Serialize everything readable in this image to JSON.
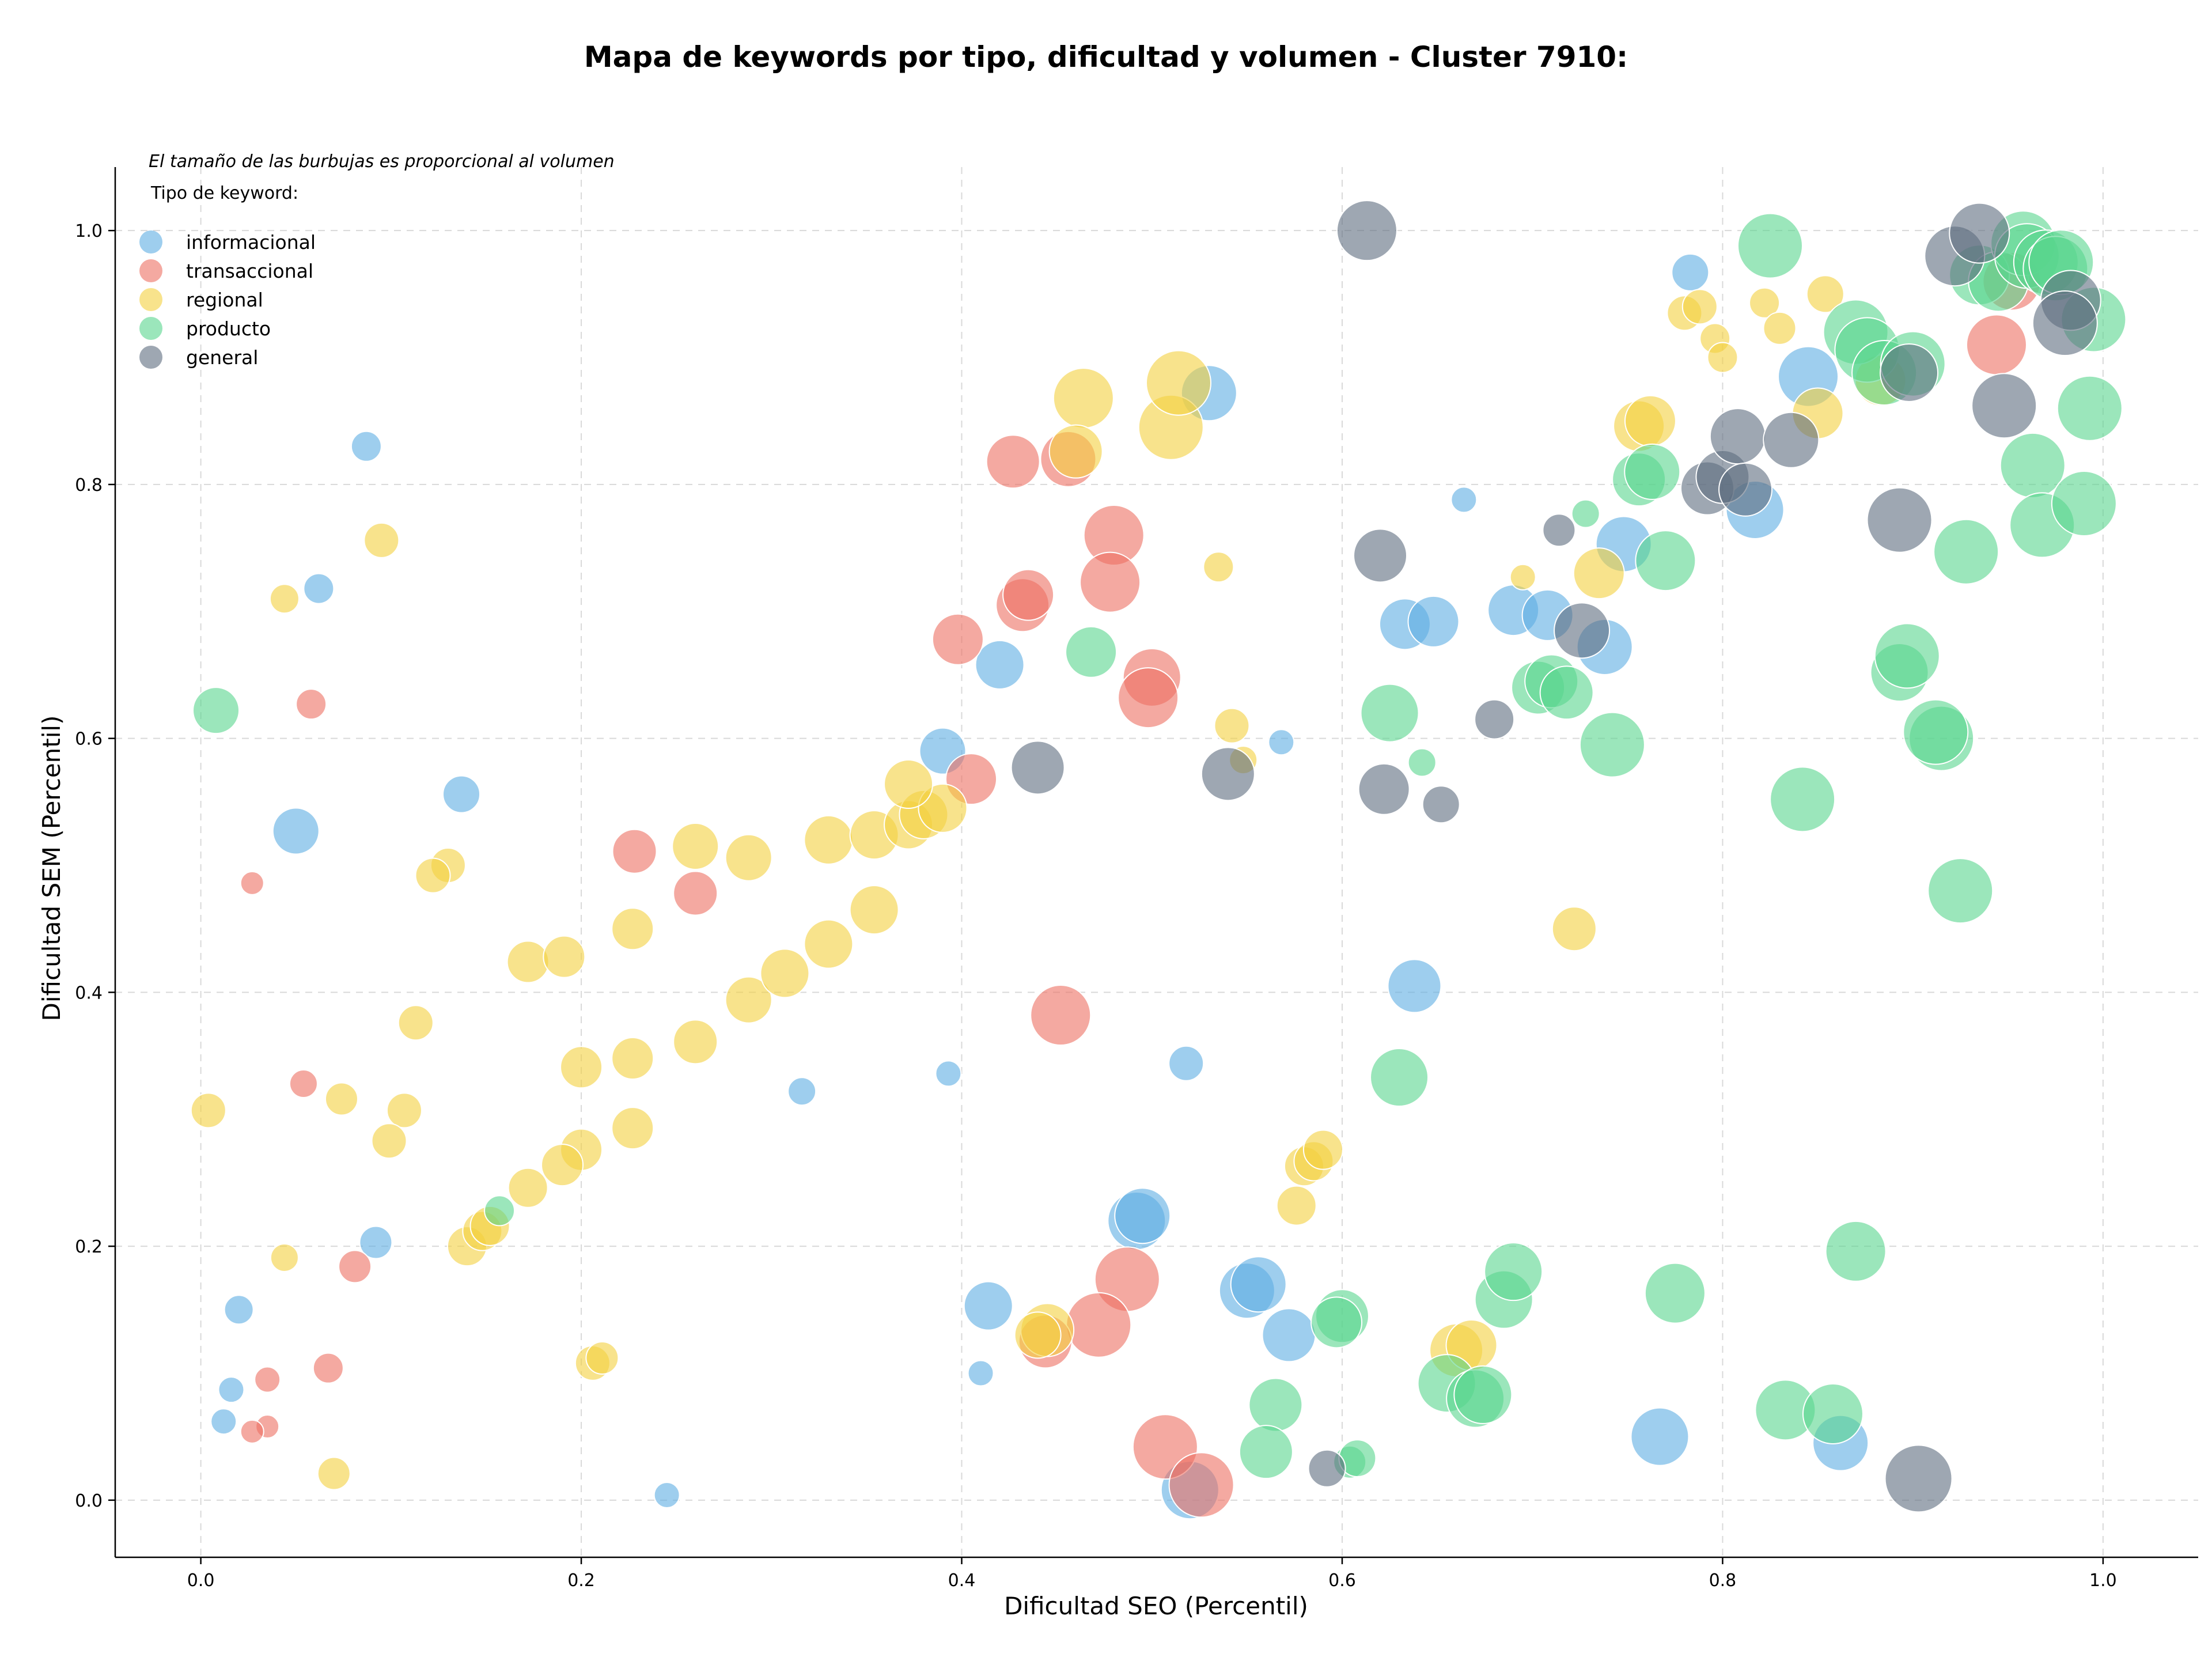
{
  "chart_data": {
    "type": "scatter",
    "title": "Mapa de keywords por tipo, dificultad y volumen - Cluster 7910:",
    "xlabel": "Dificultad SEO (Percentil)",
    "ylabel": "Dificultad SEM (Percentil)",
    "xlim": [
      -0.045,
      1.05
    ],
    "ylim": [
      -0.045,
      1.05
    ],
    "xticks": [
      "0.0",
      "0.2",
      "0.4",
      "0.6",
      "0.8",
      "1.0"
    ],
    "yticks": [
      "0.0",
      "0.2",
      "0.4",
      "0.6",
      "0.8",
      "1.0"
    ],
    "grid": true,
    "size_note": "El tamaño de las burbujas es proporcional al volumen",
    "legend_title": "Tipo de keyword:",
    "legend_position": "top-left",
    "series": [
      {
        "name": "informacional",
        "color": "#5dade2",
        "points": [
          [
            0.087,
            0.83,
            26
          ],
          [
            0.062,
            0.718,
            26
          ],
          [
            0.137,
            0.556,
            32
          ],
          [
            0.05,
            0.527,
            40
          ],
          [
            0.092,
            0.203,
            28
          ],
          [
            0.02,
            0.15,
            25
          ],
          [
            0.016,
            0.087,
            22
          ],
          [
            0.012,
            0.062,
            22
          ],
          [
            0.245,
            0.004,
            22
          ],
          [
            0.316,
            0.322,
            24
          ],
          [
            0.393,
            0.336,
            22
          ],
          [
            0.39,
            0.59,
            40
          ],
          [
            0.42,
            0.658,
            42
          ],
          [
            0.53,
            0.872,
            48
          ],
          [
            0.568,
            0.597,
            22
          ],
          [
            0.664,
            0.788,
            22
          ],
          [
            0.518,
            0.344,
            30
          ],
          [
            0.41,
            0.1,
            22
          ],
          [
            0.414,
            0.153,
            42
          ],
          [
            0.492,
            0.22,
            50
          ],
          [
            0.495,
            0.224,
            48
          ],
          [
            0.55,
            0.165,
            48
          ],
          [
            0.556,
            0.17,
            48
          ],
          [
            0.572,
            0.13,
            46
          ],
          [
            0.638,
            0.405,
            46
          ],
          [
            0.633,
            0.69,
            44
          ],
          [
            0.648,
            0.692,
            44
          ],
          [
            0.69,
            0.701,
            44
          ],
          [
            0.708,
            0.697,
            44
          ],
          [
            0.738,
            0.672,
            48
          ],
          [
            0.748,
            0.753,
            48
          ],
          [
            0.783,
            0.967,
            32
          ],
          [
            0.817,
            0.78,
            50
          ],
          [
            0.845,
            0.885,
            52
          ],
          [
            0.52,
            0.008,
            50
          ],
          [
            0.767,
            0.05,
            50
          ],
          [
            0.862,
            0.045,
            48
          ]
        ]
      },
      {
        "name": "transaccional",
        "color": "#ec7063",
        "points": [
          [
            0.058,
            0.627,
            26
          ],
          [
            0.027,
            0.486,
            20
          ],
          [
            0.054,
            0.328,
            24
          ],
          [
            0.081,
            0.184,
            28
          ],
          [
            0.067,
            0.104,
            26
          ],
          [
            0.035,
            0.095,
            22
          ],
          [
            0.035,
            0.058,
            20
          ],
          [
            0.027,
            0.054,
            20
          ],
          [
            0.228,
            0.511,
            38
          ],
          [
            0.26,
            0.478,
            38
          ],
          [
            0.405,
            0.568,
            44
          ],
          [
            0.398,
            0.678,
            44
          ],
          [
            0.432,
            0.705,
            46
          ],
          [
            0.435,
            0.713,
            44
          ],
          [
            0.427,
            0.818,
            46
          ],
          [
            0.456,
            0.82,
            48
          ],
          [
            0.48,
            0.76,
            52
          ],
          [
            0.478,
            0.723,
            52
          ],
          [
            0.5,
            0.648,
            50
          ],
          [
            0.498,
            0.632,
            52
          ],
          [
            0.452,
            0.382,
            52
          ],
          [
            0.487,
            0.174,
            56
          ],
          [
            0.472,
            0.138,
            56
          ],
          [
            0.444,
            0.125,
            46
          ],
          [
            0.507,
            0.042,
            56
          ],
          [
            0.526,
            0.012,
            56
          ],
          [
            0.944,
            0.91,
            52
          ],
          [
            0.952,
            0.96,
            50
          ]
        ]
      },
      {
        "name": "regional",
        "color": "#f4d03f",
        "points": [
          [
            0.095,
            0.756,
            30
          ],
          [
            0.044,
            0.71,
            25
          ],
          [
            0.13,
            0.5,
            30
          ],
          [
            0.122,
            0.492,
            30
          ],
          [
            0.113,
            0.376,
            30
          ],
          [
            0.004,
            0.307,
            30
          ],
          [
            0.074,
            0.316,
            28
          ],
          [
            0.107,
            0.307,
            30
          ],
          [
            0.099,
            0.283,
            30
          ],
          [
            0.044,
            0.191,
            24
          ],
          [
            0.07,
            0.021,
            28
          ],
          [
            0.172,
            0.424,
            36
          ],
          [
            0.191,
            0.428,
            36
          ],
          [
            0.2,
            0.341,
            36
          ],
          [
            0.227,
            0.45,
            36
          ],
          [
            0.227,
            0.348,
            36
          ],
          [
            0.2,
            0.276,
            36
          ],
          [
            0.19,
            0.264,
            36
          ],
          [
            0.14,
            0.2,
            34
          ],
          [
            0.148,
            0.212,
            34
          ],
          [
            0.152,
            0.216,
            34
          ],
          [
            0.172,
            0.246,
            34
          ],
          [
            0.227,
            0.293,
            36
          ],
          [
            0.26,
            0.361,
            38
          ],
          [
            0.206,
            0.108,
            30
          ],
          [
            0.211,
            0.112,
            28
          ],
          [
            0.26,
            0.515,
            40
          ],
          [
            0.288,
            0.506,
            40
          ],
          [
            0.288,
            0.394,
            40
          ],
          [
            0.307,
            0.415,
            42
          ],
          [
            0.33,
            0.52,
            42
          ],
          [
            0.33,
            0.438,
            42
          ],
          [
            0.354,
            0.524,
            42
          ],
          [
            0.354,
            0.465,
            42
          ],
          [
            0.372,
            0.532,
            42
          ],
          [
            0.38,
            0.54,
            42
          ],
          [
            0.39,
            0.545,
            42
          ],
          [
            0.372,
            0.564,
            42
          ],
          [
            0.464,
            0.868,
            52
          ],
          [
            0.46,
            0.826,
            46
          ],
          [
            0.51,
            0.845,
            56
          ],
          [
            0.514,
            0.88,
            56
          ],
          [
            0.535,
            0.735,
            26
          ],
          [
            0.542,
            0.61,
            30
          ],
          [
            0.548,
            0.583,
            24
          ],
          [
            0.576,
            0.232,
            34
          ],
          [
            0.58,
            0.263,
            34
          ],
          [
            0.585,
            0.267,
            34
          ],
          [
            0.59,
            0.276,
            34
          ],
          [
            0.445,
            0.134,
            46
          ],
          [
            0.44,
            0.13,
            40
          ],
          [
            0.66,
            0.118,
            46
          ],
          [
            0.668,
            0.122,
            44
          ],
          [
            0.695,
            0.727,
            22
          ],
          [
            0.722,
            0.45,
            38
          ],
          [
            0.735,
            0.73,
            44
          ],
          [
            0.756,
            0.846,
            44
          ],
          [
            0.762,
            0.85,
            44
          ],
          [
            0.78,
            0.935,
            30
          ],
          [
            0.788,
            0.94,
            30
          ],
          [
            0.796,
            0.915,
            26
          ],
          [
            0.8,
            0.9,
            26
          ],
          [
            0.822,
            0.943,
            26
          ],
          [
            0.83,
            0.923,
            28
          ],
          [
            0.854,
            0.95,
            32
          ],
          [
            0.85,
            0.856,
            44
          ],
          [
            0.883,
            0.882,
            44
          ]
        ]
      },
      {
        "name": "producto",
        "color": "#58d68d",
        "points": [
          [
            0.008,
            0.622,
            40
          ],
          [
            0.157,
            0.228,
            26
          ],
          [
            0.468,
            0.668,
            44
          ],
          [
            0.625,
            0.62,
            50
          ],
          [
            0.642,
            0.581,
            24
          ],
          [
            0.63,
            0.333,
            50
          ],
          [
            0.6,
            0.145,
            46
          ],
          [
            0.597,
            0.14,
            44
          ],
          [
            0.565,
            0.075,
            46
          ],
          [
            0.56,
            0.038,
            46
          ],
          [
            0.604,
            0.03,
            28
          ],
          [
            0.608,
            0.033,
            32
          ],
          [
            0.655,
            0.092,
            50
          ],
          [
            0.67,
            0.08,
            50
          ],
          [
            0.674,
            0.083,
            50
          ],
          [
            0.685,
            0.158,
            50
          ],
          [
            0.69,
            0.18,
            50
          ],
          [
            0.703,
            0.64,
            46
          ],
          [
            0.71,
            0.645,
            46
          ],
          [
            0.718,
            0.636,
            46
          ],
          [
            0.728,
            0.777,
            24
          ],
          [
            0.742,
            0.595,
            56
          ],
          [
            0.756,
            0.804,
            46
          ],
          [
            0.763,
            0.81,
            48
          ],
          [
            0.77,
            0.74,
            52
          ],
          [
            0.775,
            0.163,
            52
          ],
          [
            0.825,
            0.988,
            56
          ],
          [
            0.833,
            0.071,
            52
          ],
          [
            0.842,
            0.552,
            56
          ],
          [
            0.858,
            0.068,
            52
          ],
          [
            0.87,
            0.196,
            52
          ],
          [
            0.87,
            0.92,
            56
          ],
          [
            0.876,
            0.906,
            56
          ],
          [
            0.885,
            0.888,
            56
          ],
          [
            0.893,
            0.652,
            50
          ],
          [
            0.897,
            0.665,
            56
          ],
          [
            0.9,
            0.895,
            56
          ],
          [
            0.915,
            0.6,
            56
          ],
          [
            0.912,
            0.605,
            56
          ],
          [
            0.925,
            0.48,
            56
          ],
          [
            0.928,
            0.747,
            56
          ],
          [
            0.935,
            0.965,
            52
          ],
          [
            0.945,
            0.96,
            52
          ],
          [
            0.958,
            0.99,
            56
          ],
          [
            0.96,
            0.98,
            56
          ],
          [
            0.963,
            0.815,
            56
          ],
          [
            0.968,
            0.768,
            56
          ],
          [
            0.97,
            0.975,
            56
          ],
          [
            0.975,
            0.97,
            56
          ],
          [
            0.978,
            0.975,
            56
          ],
          [
            0.995,
            0.93,
            56
          ],
          [
            0.993,
            0.86,
            56
          ],
          [
            0.99,
            0.785,
            56
          ]
        ]
      },
      {
        "name": "general",
        "color": "#5d6d7e",
        "points": [
          [
            0.613,
            1.0,
            52
          ],
          [
            0.62,
            0.744,
            46
          ],
          [
            0.44,
            0.577,
            46
          ],
          [
            0.54,
            0.572,
            46
          ],
          [
            0.622,
            0.56,
            44
          ],
          [
            0.652,
            0.548,
            32
          ],
          [
            0.68,
            0.615,
            34
          ],
          [
            0.714,
            0.764,
            28
          ],
          [
            0.726,
            0.685,
            48
          ],
          [
            0.792,
            0.797,
            46
          ],
          [
            0.8,
            0.806,
            46
          ],
          [
            0.808,
            0.838,
            48
          ],
          [
            0.812,
            0.796,
            46
          ],
          [
            0.836,
            0.835,
            48
          ],
          [
            0.592,
            0.025,
            32
          ],
          [
            0.893,
            0.772,
            56
          ],
          [
            0.898,
            0.888,
            50
          ],
          [
            0.922,
            0.98,
            52
          ],
          [
            0.935,
            0.998,
            52
          ],
          [
            0.948,
            0.862,
            56
          ],
          [
            0.983,
            0.945,
            52
          ],
          [
            0.98,
            0.927,
            56
          ],
          [
            0.903,
            0.017,
            58
          ]
        ]
      }
    ]
  }
}
